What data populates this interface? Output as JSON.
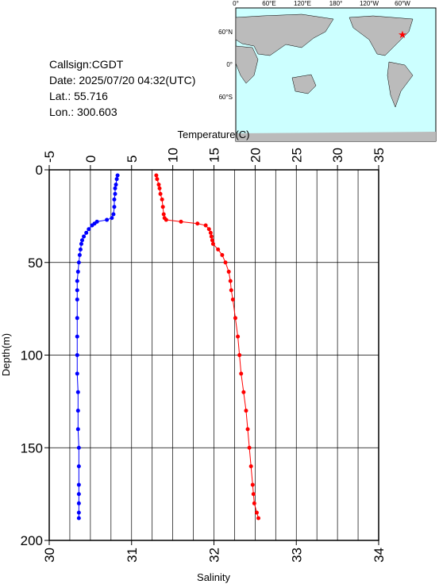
{
  "info": {
    "callsign": "Callsign:CGDT",
    "date": "Date:  2025/07/20 04:32(UTC)",
    "lat": "Lat.:  55.716",
    "lon": "Lon.:  300.603"
  },
  "map": {
    "lon_labels": [
      "0°",
      "60°E",
      "120°E",
      "180°",
      "120°W",
      "60°W"
    ],
    "lat_labels": [
      "60°N",
      "0°",
      "60°S"
    ]
  },
  "chart_data": {
    "type": "profile",
    "ylabel": "Depth(m)",
    "ylim": [
      0,
      200
    ],
    "yticks": [
      0,
      50,
      100,
      150,
      200
    ],
    "x2label": "Temperature(C)",
    "x2lim": [
      -5,
      35
    ],
    "x2ticks": [
      -5,
      0,
      5,
      10,
      15,
      20,
      25,
      30,
      35
    ],
    "x2grid": [
      -2.5,
      0,
      2.5,
      5,
      7.5,
      10,
      12.5,
      15,
      17.5,
      20,
      22.5,
      25,
      27.5,
      30,
      32.5
    ],
    "xlabel": "Salinity",
    "xlim": [
      30,
      34
    ],
    "xticks": [
      30,
      31,
      32,
      33,
      34
    ],
    "series": [
      {
        "axis": "x",
        "color": "#0000ff",
        "depth": [
          3,
          5,
          8,
          10,
          13,
          16,
          20,
          24,
          26,
          27,
          28,
          29,
          30,
          32,
          34,
          36,
          38,
          40,
          43,
          46,
          50,
          55,
          60,
          65,
          70,
          80,
          90,
          100,
          110,
          120,
          130,
          140,
          150,
          160,
          170,
          175,
          180,
          185,
          188
        ],
        "values": [
          30.83,
          30.82,
          30.81,
          30.8,
          30.8,
          30.79,
          30.79,
          30.78,
          30.76,
          30.7,
          30.58,
          30.55,
          30.52,
          30.48,
          30.45,
          30.42,
          30.4,
          30.39,
          30.38,
          30.37,
          30.36,
          30.35,
          30.34,
          30.34,
          30.34,
          30.34,
          30.34,
          30.34,
          30.34,
          30.35,
          30.35,
          30.35,
          30.36,
          30.36,
          30.36,
          30.36,
          30.36,
          30.36,
          30.36
        ]
      },
      {
        "axis": "x2",
        "color": "#ff0000",
        "depth": [
          3,
          5,
          8,
          10,
          13,
          16,
          20,
          24,
          26,
          27,
          28,
          29,
          30,
          32,
          34,
          36,
          38,
          40,
          43,
          46,
          50,
          55,
          60,
          65,
          70,
          80,
          90,
          100,
          110,
          120,
          130,
          140,
          150,
          160,
          170,
          175,
          180,
          185,
          188
        ],
        "values": [
          8.0,
          8.1,
          8.3,
          8.4,
          8.5,
          8.7,
          8.8,
          8.9,
          9.0,
          9.2,
          11.0,
          13.0,
          14.0,
          14.4,
          14.6,
          14.7,
          14.8,
          14.9,
          15.5,
          16.0,
          16.4,
          16.8,
          17.0,
          17.1,
          17.3,
          17.6,
          17.9,
          18.1,
          18.3,
          18.6,
          18.9,
          19.1,
          19.3,
          19.5,
          19.7,
          19.8,
          19.9,
          20.2,
          20.4
        ]
      }
    ]
  }
}
